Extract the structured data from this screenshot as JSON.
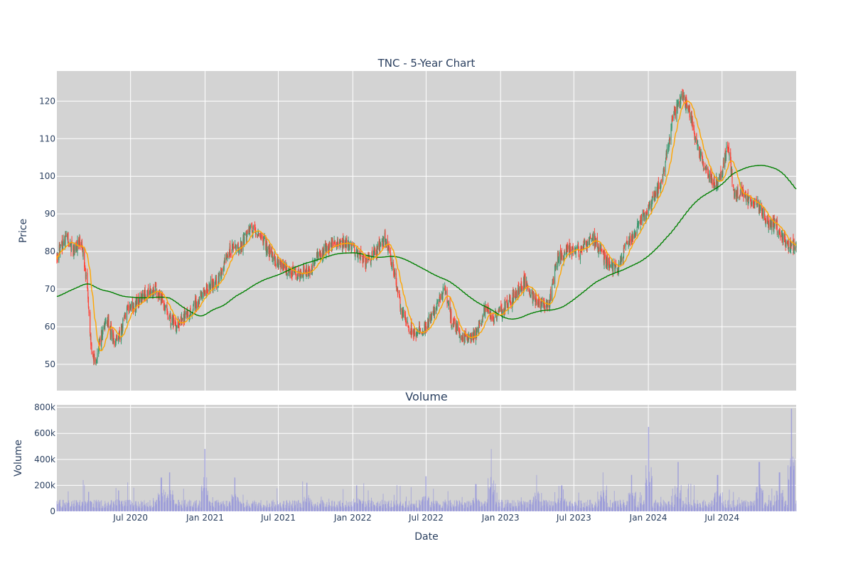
{
  "chart_data": [
    {
      "type": "candlestick",
      "title": "TNC - 5-Year Chart",
      "ylabel": "Price",
      "ylim": [
        43,
        128
      ],
      "yticks": [
        50,
        60,
        70,
        80,
        90,
        100,
        110,
        120
      ],
      "grid": true,
      "colors": {
        "up": "#3d9970",
        "down": "#ff4136",
        "ma_fast": "#ffa500",
        "ma_slow": "#008000",
        "plot_bg": "#d3d3d3",
        "grid": "#ffffff",
        "text": "#2a3f5f"
      },
      "close_anchors": [
        [
          "2020-01-01",
          79
        ],
        [
          "2020-01-25",
          84
        ],
        [
          "2020-02-10",
          80
        ],
        [
          "2020-03-01",
          83
        ],
        [
          "2020-03-15",
          72
        ],
        [
          "2020-03-25",
          55
        ],
        [
          "2020-04-05",
          50
        ],
        [
          "2020-04-20",
          58
        ],
        [
          "2020-05-05",
          62
        ],
        [
          "2020-05-20",
          56
        ],
        [
          "2020-06-05",
          58
        ],
        [
          "2020-06-20",
          64
        ],
        [
          "2020-07-10",
          66
        ],
        [
          "2020-08-01",
          68
        ],
        [
          "2020-09-01",
          70
        ],
        [
          "2020-10-01",
          64
        ],
        [
          "2020-10-20",
          60
        ],
        [
          "2020-11-15",
          63
        ],
        [
          "2020-12-01",
          65
        ],
        [
          "2021-01-01",
          70
        ],
        [
          "2021-02-01",
          72
        ],
        [
          "2021-03-01",
          80
        ],
        [
          "2021-04-01",
          82
        ],
        [
          "2021-04-20",
          86
        ],
        [
          "2021-05-20",
          84
        ],
        [
          "2021-06-15",
          79
        ],
        [
          "2021-07-15",
          76
        ],
        [
          "2021-08-15",
          74
        ],
        [
          "2021-09-15",
          75
        ],
        [
          "2021-10-15",
          80
        ],
        [
          "2021-11-15",
          82
        ],
        [
          "2021-12-15",
          82
        ],
        [
          "2022-01-01",
          81
        ],
        [
          "2022-02-01",
          77
        ],
        [
          "2022-03-01",
          80
        ],
        [
          "2022-03-20",
          84
        ],
        [
          "2022-04-15",
          74
        ],
        [
          "2022-05-01",
          64
        ],
        [
          "2022-06-01",
          58
        ],
        [
          "2022-07-01",
          60
        ],
        [
          "2022-07-20",
          64
        ],
        [
          "2022-08-15",
          70
        ],
        [
          "2022-09-01",
          62
        ],
        [
          "2022-10-01",
          57
        ],
        [
          "2022-11-01",
          58
        ],
        [
          "2022-11-25",
          65
        ],
        [
          "2022-12-15",
          62
        ],
        [
          "2023-01-01",
          64
        ],
        [
          "2023-02-01",
          68
        ],
        [
          "2023-03-01",
          72
        ],
        [
          "2023-04-01",
          66
        ],
        [
          "2023-05-01",
          66
        ],
        [
          "2023-05-20",
          78
        ],
        [
          "2023-06-15",
          80
        ],
        [
          "2023-07-15",
          80
        ],
        [
          "2023-08-15",
          84
        ],
        [
          "2023-09-15",
          78
        ],
        [
          "2023-10-15",
          75
        ],
        [
          "2023-11-15",
          83
        ],
        [
          "2023-12-15",
          88
        ],
        [
          "2024-01-01",
          91
        ],
        [
          "2024-02-01",
          98
        ],
        [
          "2024-03-01",
          115
        ],
        [
          "2024-03-25",
          122
        ],
        [
          "2024-04-15",
          116
        ],
        [
          "2024-05-01",
          108
        ],
        [
          "2024-05-20",
          102
        ],
        [
          "2024-06-10",
          98
        ],
        [
          "2024-06-25",
          99
        ],
        [
          "2024-07-15",
          108
        ],
        [
          "2024-08-01",
          95
        ],
        [
          "2024-08-20",
          96
        ],
        [
          "2024-09-10",
          93
        ],
        [
          "2024-10-01",
          92
        ],
        [
          "2024-10-20",
          88
        ],
        [
          "2024-11-10",
          87
        ],
        [
          "2024-11-25",
          84
        ],
        [
          "2024-12-10",
          82
        ],
        [
          "2024-12-31",
          81
        ]
      ],
      "ma_fast_window": 20,
      "ma_slow_window": 200
    },
    {
      "type": "bar",
      "title": "Volume",
      "xlabel": "Date",
      "ylabel": "Volume",
      "ylim": [
        0,
        820000
      ],
      "yticks": [
        0,
        200000,
        400000,
        600000,
        800000
      ],
      "ytick_labels": [
        "0",
        "200k",
        "400k",
        "600k",
        "800k"
      ],
      "xlim": [
        "2020-01-01",
        "2024-12-31"
      ],
      "xticks": [
        "2020-07-01",
        "2021-01-01",
        "2021-07-01",
        "2022-01-01",
        "2022-07-01",
        "2023-01-01",
        "2023-07-01",
        "2024-01-01",
        "2024-07-01"
      ],
      "xtick_labels": [
        "Jul 2020",
        "Jan 2021",
        "Jul 2021",
        "Jan 2022",
        "Jul 2022",
        "Jan 2023",
        "Jul 2023",
        "Jan 2024",
        "Jul 2024"
      ],
      "color": "#8888dd",
      "base_volume": 60000,
      "spikes": [
        [
          "2020-03-20",
          150000
        ],
        [
          "2020-06-01",
          160000
        ],
        [
          "2020-09-15",
          260000
        ],
        [
          "2020-10-05",
          300000
        ],
        [
          "2021-01-01",
          480000
        ],
        [
          "2021-03-15",
          260000
        ],
        [
          "2021-09-10",
          220000
        ],
        [
          "2022-01-10",
          200000
        ],
        [
          "2022-07-01",
          270000
        ],
        [
          "2022-11-01",
          210000
        ],
        [
          "2022-12-10",
          480000
        ],
        [
          "2023-04-01",
          280000
        ],
        [
          "2023-06-01",
          200000
        ],
        [
          "2023-09-10",
          300000
        ],
        [
          "2023-11-20",
          280000
        ],
        [
          "2024-01-01",
          650000
        ],
        [
          "2024-03-15",
          380000
        ],
        [
          "2024-06-20",
          280000
        ],
        [
          "2024-10-01",
          380000
        ],
        [
          "2024-11-20",
          300000
        ],
        [
          "2024-12-20",
          790000
        ]
      ]
    }
  ]
}
